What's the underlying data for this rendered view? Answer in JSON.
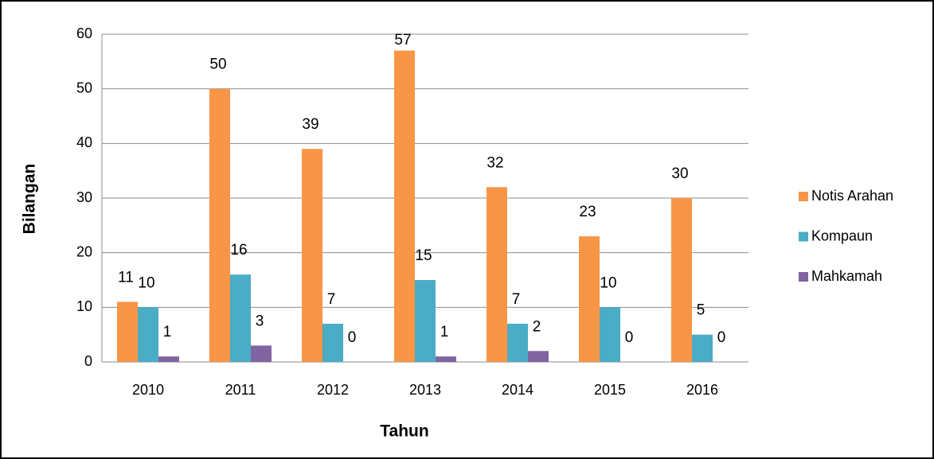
{
  "chart_data": {
    "type": "bar",
    "categories": [
      "2010",
      "2011",
      "2012",
      "2013",
      "2014",
      "2015",
      "2016"
    ],
    "series": [
      {
        "name": "Notis Arahan",
        "color": "#f79646",
        "values": [
          11,
          50,
          39,
          57,
          32,
          23,
          30
        ]
      },
      {
        "name": "Kompaun",
        "color": "#4bacc6",
        "values": [
          10,
          16,
          7,
          15,
          7,
          10,
          5
        ]
      },
      {
        "name": "Mahkamah",
        "color": "#8064a2",
        "values": [
          1,
          3,
          0,
          1,
          2,
          0,
          0
        ]
      }
    ],
    "x_label": "Tahun",
    "y_label": "Bilangan",
    "ylim": [
      0,
      60
    ],
    "yticks": [
      0,
      10,
      20,
      30,
      40,
      50,
      60
    ],
    "grid": true,
    "legend": "right"
  }
}
